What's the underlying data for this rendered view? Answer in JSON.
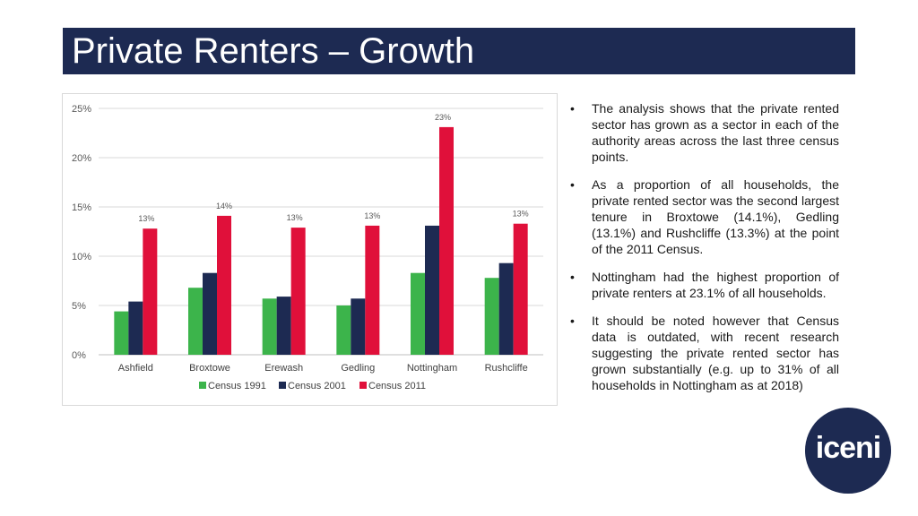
{
  "header": {
    "title": "Private Renters – Growth"
  },
  "bullets": [
    "The analysis shows that the private rented sector has grown as a sector in each of the authority areas across the last three census points.",
    "As a proportion of all households, the private rented sector was the second largest tenure in Broxtowe (14.1%), Gedling (13.1%) and Rushcliffe (13.3%) at the point of the 2011 Census.",
    "Nottingham had the highest proportion of private renters at 23.1% of all households.",
    "It should be noted however that Census data is outdated, with recent research suggesting the private rented sector has grown substantially (e.g. up to 31% of all households in Nottingham  as at 2018)"
  ],
  "logo": {
    "text": "iceni"
  },
  "chart_data": {
    "type": "bar",
    "categories": [
      "Ashfield",
      "Broxtowe",
      "Erewash",
      "Gedling",
      "Nottingham",
      "Rushcliffe"
    ],
    "series": [
      {
        "name": "Census 1991",
        "color": "#3cb44b",
        "values": [
          4.4,
          6.8,
          5.7,
          5.0,
          8.3,
          7.8
        ]
      },
      {
        "name": "Census 2001",
        "color": "#1d2a52",
        "values": [
          5.4,
          8.3,
          5.9,
          5.7,
          13.1,
          9.3
        ]
      },
      {
        "name": "Census 2011",
        "color": "#e0103a",
        "values": [
          12.8,
          14.1,
          12.9,
          13.1,
          23.1,
          13.3
        ]
      }
    ],
    "data_labels": [
      "13%",
      "14%",
      "13%",
      "13%",
      "23%",
      "13%"
    ],
    "yticks": [
      "0%",
      "5%",
      "10%",
      "15%",
      "20%",
      "25%"
    ],
    "ylim": [
      0,
      25
    ],
    "grid": true,
    "legend": "bottom"
  }
}
